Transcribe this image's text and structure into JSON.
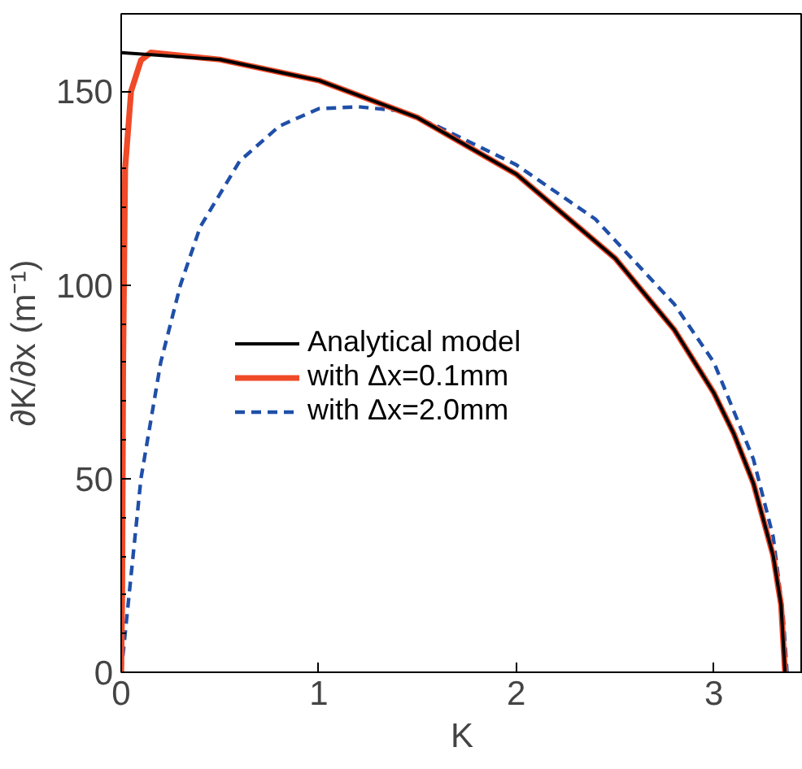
{
  "chart_data": {
    "type": "line",
    "xlabel": "K",
    "ylabel": "∂K/∂x (m⁻¹)",
    "xlim": [
      0,
      3.45
    ],
    "ylim": [
      0,
      170
    ],
    "xticks": [
      0,
      1,
      2,
      3
    ],
    "yticks": [
      0,
      50,
      100,
      150
    ],
    "grid": false,
    "legend": "bottom",
    "series": [
      {
        "name": "Analytical model",
        "color": "#000000",
        "line_style": "solid",
        "x": [
          0,
          0.5,
          1,
          1.5,
          2,
          2.5,
          2.8,
          3.0,
          3.1,
          3.2,
          3.3,
          3.34,
          3.36
        ],
        "values": [
          160,
          158.2,
          152.8,
          143.2,
          128.6,
          106.9,
          88.4,
          72.1,
          61.7,
          48.8,
          30.1,
          17.4,
          0
        ]
      },
      {
        "name": "with Δx=0.1mm",
        "color": "#f04a28",
        "line_style": "solid",
        "x": [
          0,
          0.005,
          0.01,
          0.02,
          0.05,
          0.1,
          0.15,
          0.5,
          1,
          1.5,
          2,
          2.5,
          2.8,
          3.0,
          3.1,
          3.2,
          3.3,
          3.34,
          3.36
        ],
        "values": [
          0,
          20,
          80,
          130,
          150,
          158,
          160,
          158.2,
          152.8,
          143.2,
          128.6,
          106.9,
          88.4,
          72.1,
          61.7,
          48.8,
          30.1,
          17.4,
          0
        ]
      },
      {
        "name": "with Δx=2.0mm",
        "color": "#1f4fa8",
        "line_style": "dashed",
        "x": [
          0,
          0.05,
          0.1,
          0.2,
          0.3,
          0.4,
          0.6,
          0.8,
          1.0,
          1.2,
          1.4,
          1.6,
          2.0,
          2.4,
          2.8,
          3.0,
          3.2,
          3.3,
          3.35,
          3.37
        ],
        "values": [
          0,
          25,
          50,
          80,
          100,
          115,
          132,
          141,
          145.5,
          146,
          145,
          141,
          131,
          117,
          95,
          80,
          55,
          35,
          15,
          0
        ]
      }
    ]
  }
}
